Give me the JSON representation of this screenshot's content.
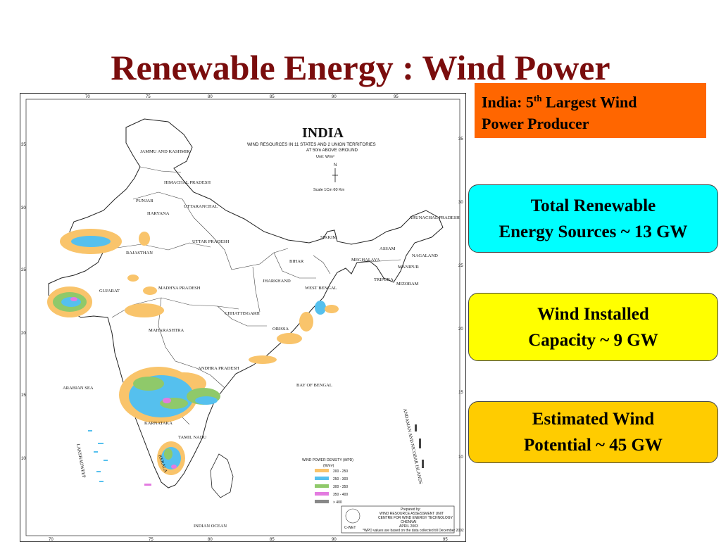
{
  "slide": {
    "title": "Renewable Energy : Wind Power"
  },
  "callout": {
    "line1_prefix": "India: 5",
    "superscript": "th",
    "line1_suffix": " Largest Wind",
    "line2": "Power Producer"
  },
  "stats": [
    {
      "line1": "Total Renewable",
      "line2": "Energy Sources ~ 13 GW",
      "color": "#00ffff"
    },
    {
      "line1": "Wind Installed",
      "line2": "Capacity ~ 9 GW",
      "color": "#ffff00"
    },
    {
      "line1": "Estimated Wind",
      "line2": "Potential ~ 45 GW",
      "color": "#ffcc00"
    }
  ],
  "map": {
    "heading": "INDIA",
    "subtitle1": "WIND RESOURCES IN 11 STATES AND 2 UNION TERRITORIES",
    "subtitle2": "AT 50m ABOVE GROUND",
    "unit": "Unit: W/m²",
    "north": "N",
    "scale": "Scale 1Cm    60 Km",
    "longitude_ticks": [
      "70",
      "75",
      "80",
      "85",
      "90",
      "95"
    ],
    "latitude_ticks": [
      "35",
      "30",
      "25",
      "20",
      "15",
      "10"
    ],
    "regions": {
      "jk": "JAMMU AND KASHMIR",
      "hp": "HIMACHAL PRADESH",
      "punjab": "PUNJAB",
      "haryana": "HARYANA",
      "uttaranchal": "UTTARANCHAL",
      "rajasthan": "RAJASTHAN",
      "up": "UTTAR PRADESH",
      "gujarat": "GUJARAT",
      "mp": "MADHYA PRADESH",
      "bihar": "BIHAR",
      "jharkhand": "JHARKHAND",
      "wb": "WEST BENGAL",
      "sikkim": "SIKKIM",
      "assam": "ASSAM",
      "meghalaya": "MEGHALAYA",
      "arunachal": "ARUNACHAL PRADESH",
      "nagaland": "NAGALAND",
      "manipur": "MANIPUR",
      "mizoram": "MIZORAM",
      "tripura": "TRIPURA",
      "chhattisgarh": "CHHATTISGARH",
      "orissa": "ORISSA",
      "maharashtra": "MAHARASHTRA",
      "ap": "ANDHRA PRADESH",
      "karnataka": "KARNATAKA",
      "tn": "TAMIL NADU",
      "kerala": "KERALA",
      "arabian": "ARABIAN SEA",
      "bay": "BAY OF BENGAL",
      "indian": "INDIAN OCEAN",
      "lakshadweep": "LAKSHADWEEP",
      "andaman": "ANDAMAN AND NICOBAR ISLANDS"
    },
    "legend": {
      "title": "WIND POWER DENSITY (WPD)",
      "unit": "(W/m²)",
      "items": [
        {
          "label": "200 - 250",
          "color": "#f9c46b"
        },
        {
          "label": "250 - 300",
          "color": "#55c0ee"
        },
        {
          "label": "300 - 350",
          "color": "#8fc96a"
        },
        {
          "label": "350 - 400",
          "color": "#e37be0"
        },
        {
          "label": "> 400",
          "color": "#888888"
        }
      ]
    },
    "credit": {
      "line1": "Prepared by:",
      "line2": "WIND RESOURCE ASSESSMENT UNIT",
      "line3": "CENTRE FOR WIND ENERGY TECHNOLOGY",
      "line4": "CHENNAI",
      "line5": "APRIL 2003",
      "logo_text": "C-WET",
      "note": "*WPD values are based on the data collected till December 2002"
    }
  }
}
